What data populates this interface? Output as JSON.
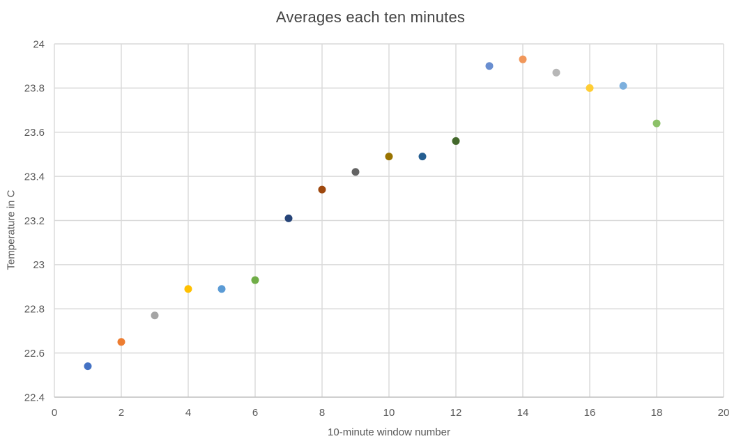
{
  "chart_data": {
    "type": "scatter",
    "title": "Averages each ten minutes",
    "xlabel": "10-minute window number",
    "ylabel": "Temperature in C",
    "x": [
      1,
      2,
      3,
      4,
      5,
      6,
      7,
      8,
      9,
      10,
      11,
      12,
      13,
      14,
      15,
      16,
      17,
      18
    ],
    "y": [
      22.54,
      22.65,
      22.77,
      22.89,
      22.89,
      22.93,
      23.21,
      23.34,
      23.42,
      23.49,
      23.49,
      23.56,
      23.9,
      23.93,
      23.87,
      23.8,
      23.81,
      23.64
    ],
    "point_colors": [
      "#4472C4",
      "#ED7D31",
      "#A5A5A5",
      "#FFC000",
      "#5B9BD5",
      "#70AD47",
      "#264478",
      "#9E480E",
      "#636363",
      "#997300",
      "#255E91",
      "#43682B",
      "#698ED0",
      "#F1975A",
      "#B7B7B7",
      "#FFCD33",
      "#7CAFDD",
      "#8CC168"
    ],
    "xlim": [
      0,
      20
    ],
    "ylim": [
      22.4,
      24
    ],
    "x_ticks": [
      0,
      2,
      4,
      6,
      8,
      10,
      12,
      14,
      16,
      18,
      20
    ],
    "y_ticks": [
      22.4,
      22.6,
      22.8,
      23,
      23.2,
      23.4,
      23.6,
      23.8,
      24
    ],
    "x_tick_labels": [
      "0",
      "2",
      "4",
      "6",
      "8",
      "10",
      "12",
      "14",
      "16",
      "18",
      "20"
    ],
    "y_tick_labels": [
      "22.4",
      "22.6",
      "22.8",
      "23",
      "23.2",
      "23.4",
      "23.6",
      "23.8",
      "24"
    ],
    "grid": true,
    "legend": false,
    "marker_diameter_px": 11
  },
  "colors": {
    "background": "#FFFFFF",
    "gridline": "#D9D9D9",
    "axis_line": "#BFBFBF",
    "tick_text": "#595959",
    "title_text": "#444444"
  }
}
